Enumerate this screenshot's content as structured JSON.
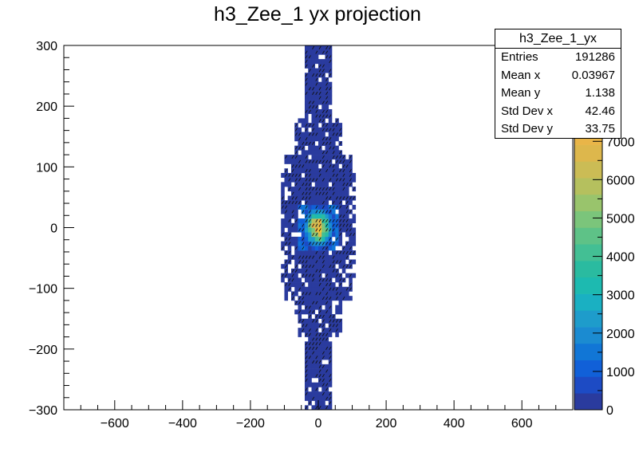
{
  "title": "h3_Zee_1 yx projection",
  "stats": {
    "title": "h3_Zee_1_yx",
    "rows": [
      {
        "label": "Entries",
        "value": "191286"
      },
      {
        "label": "Mean x",
        "value": "0.03967"
      },
      {
        "label": "Mean y",
        "value": "1.138"
      },
      {
        "label": "Std Dev x",
        "value": "42.46"
      },
      {
        "label": "Std Dev y",
        "value": "33.75"
      }
    ]
  },
  "chart_data": {
    "type": "heatmap",
    "title": "h3_Zee_1 yx projection",
    "xlabel": "",
    "ylabel": "",
    "xlim": [
      -750,
      750
    ],
    "ylim": [
      -300,
      300
    ],
    "zlim": [
      0,
      9500
    ],
    "x_ticks": [
      -600,
      -400,
      -200,
      0,
      200,
      400,
      600
    ],
    "x_tick_labels": [
      "−600",
      "−400",
      "−200",
      "0",
      "200",
      "400",
      "600"
    ],
    "y_ticks": [
      -300,
      -200,
      -100,
      0,
      100,
      200,
      300
    ],
    "y_tick_labels": [
      "−300",
      "−200",
      "−100",
      "0",
      "100",
      "200",
      "300"
    ],
    "z_ticks": [
      0,
      1000,
      2000,
      3000,
      4000,
      5000,
      6000,
      7000
    ],
    "z_tick_labels": [
      "0",
      "1000",
      "2000",
      "3000",
      "4000",
      "5000",
      "6000",
      "7000"
    ],
    "palette": [
      "#2a3b9e",
      "#1d4bc4",
      "#1160d8",
      "#1176d6",
      "#1b8bd1",
      "#1e9ccb",
      "#1ab0c2",
      "#1dbab0",
      "#2abba0",
      "#43bf94",
      "#5ec287",
      "#7bc57b",
      "#99c46c",
      "#b5c05e",
      "#cbbc55",
      "#ddb74c",
      "#e9b548",
      "#f1bb3e",
      "#f4c836",
      "#f4d82e",
      "#f6e824",
      "#f9f71a"
    ],
    "core": {
      "x_mean": 0.03967,
      "y_mean": 1.138,
      "peak_x": 0,
      "peak_y": 0,
      "peak_value": 9000
    }
  }
}
